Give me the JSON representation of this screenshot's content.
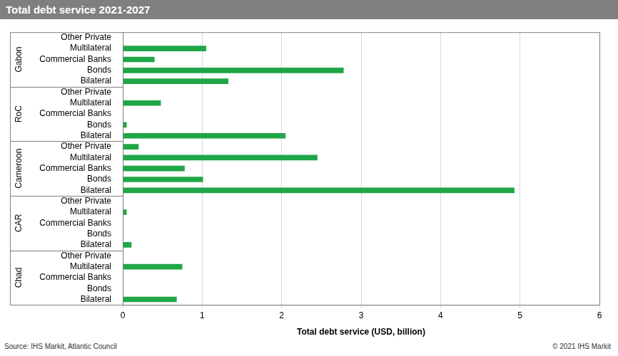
{
  "chart_data": {
    "type": "bar",
    "orientation": "horizontal",
    "title": "Total debt service 2021-2027",
    "x_label": "Total debt service (USD, billion)",
    "source": "Source: IHS Markit, Atlantic Council",
    "copyright": "© 2021 IHS Markit",
    "color": "#1fa647",
    "grid": true,
    "xlim": [
      0,
      6
    ],
    "xticks": [
      0,
      1,
      2,
      3,
      4,
      5,
      6
    ],
    "groups": [
      {
        "name": "Gabon",
        "categories": [
          "Other Private",
          "Multilateral",
          "Commercial Banks",
          "Bonds",
          "Bilateral"
        ],
        "values": [
          0,
          1.05,
          0.4,
          2.78,
          1.33
        ]
      },
      {
        "name": "RoC",
        "categories": [
          "Other Private",
          "Multilateral",
          "Commercial Banks",
          "Bonds",
          "Bilateral"
        ],
        "values": [
          0,
          0.48,
          0,
          0.05,
          2.05
        ]
      },
      {
        "name": "Cameroon",
        "categories": [
          "Other Private",
          "Multilateral",
          "Commercial Banks",
          "Bonds",
          "Bilateral"
        ],
        "values": [
          0.2,
          2.45,
          0.78,
          1.01,
          4.93
        ]
      },
      {
        "name": "CAR",
        "categories": [
          "Other Private",
          "Multilateral",
          "Commercial Banks",
          "Bonds",
          "Bilateral"
        ],
        "values": [
          0,
          0.05,
          0,
          0,
          0.11
        ]
      },
      {
        "name": "Chad",
        "categories": [
          "Other Private",
          "Multilateral",
          "Commercial Banks",
          "Bonds",
          "Bilateral"
        ],
        "values": [
          0,
          0.75,
          0,
          0,
          0.68
        ]
      }
    ]
  }
}
